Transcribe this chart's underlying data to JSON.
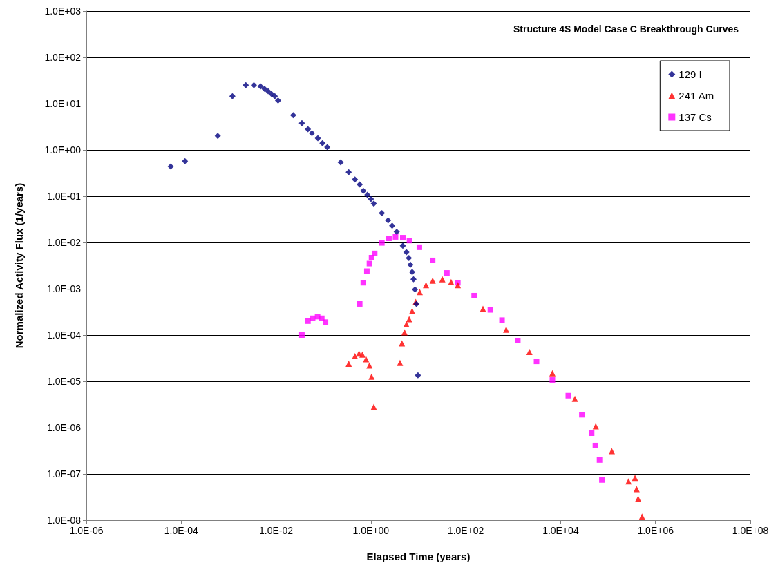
{
  "chart_data": {
    "type": "scatter",
    "title": "Structure 4S Model Case C Breakthrough Curves",
    "xlabel": "Elapsed Time (years)",
    "ylabel": "Normalized Activity Flux (1/years)",
    "log": "xy",
    "grid": "y",
    "legend": "top right",
    "xlim": [
      1e-06,
      100000000.0
    ],
    "ylim": [
      1e-08,
      1000.0
    ],
    "xticks": [
      {
        "value": 1e-06,
        "label": "1.0E-06"
      },
      {
        "value": 0.0001,
        "label": "1.0E-04"
      },
      {
        "value": 0.01,
        "label": "1.0E-02"
      },
      {
        "value": 1,
        "label": "1.0E+00"
      },
      {
        "value": 100.0,
        "label": "1.0E+02"
      },
      {
        "value": 10000.0,
        "label": "1.0E+04"
      },
      {
        "value": 1000000.0,
        "label": "1.0E+06"
      },
      {
        "value": 100000000.0,
        "label": "1.0E+08"
      }
    ],
    "yticks": [
      {
        "value": 1e-08,
        "label": "1.0E-08"
      },
      {
        "value": 1e-07,
        "label": "1.0E-07"
      },
      {
        "value": 1e-06,
        "label": "1.0E-06"
      },
      {
        "value": 1e-05,
        "label": "1.0E-05"
      },
      {
        "value": 0.0001,
        "label": "1.0E-04"
      },
      {
        "value": 0.001,
        "label": "1.0E-03"
      },
      {
        "value": 0.01,
        "label": "1.0E-02"
      },
      {
        "value": 0.1,
        "label": "1.0E-01"
      },
      {
        "value": 1,
        "label": "1.0E+00"
      },
      {
        "value": 10,
        "label": "1.0E+01"
      },
      {
        "value": 100,
        "label": "1.0E+02"
      },
      {
        "value": 1000,
        "label": "1.0E+03"
      }
    ],
    "series": [
      {
        "name": "129 I",
        "color": "#000080",
        "marker": "diamond",
        "x": [
          6e-05,
          0.00012,
          0.00059,
          0.0012,
          0.0023,
          0.0034,
          0.0047,
          0.0057,
          0.0068,
          0.008,
          0.0094,
          0.011,
          0.023,
          0.035,
          0.047,
          0.057,
          0.076,
          0.095,
          0.12,
          0.23,
          0.34,
          0.46,
          0.58,
          0.69,
          0.84,
          1.0,
          1.15,
          1.7,
          2.3,
          2.8,
          3.5,
          4.7,
          5.6,
          6.3,
          6.8,
          7.4,
          7.9,
          8.5,
          9.1,
          9.8
        ],
        "values": [
          0.44,
          0.57,
          2.0,
          14.5,
          25,
          25,
          23.6,
          21,
          18.6,
          16.2,
          14.5,
          11.7,
          5.6,
          3.8,
          2.8,
          2.3,
          1.8,
          1.4,
          1.15,
          0.54,
          0.33,
          0.23,
          0.18,
          0.13,
          0.107,
          0.087,
          0.069,
          0.043,
          0.03,
          0.023,
          0.017,
          0.0085,
          0.0062,
          0.0046,
          0.0033,
          0.0023,
          0.0016,
          0.00097,
          0.00047,
          1.35e-05
        ]
      },
      {
        "name": "241 Am",
        "color": "#ff0000",
        "marker": "triangle",
        "x": [
          0.34,
          0.46,
          0.56,
          0.66,
          0.79,
          0.93,
          1.03,
          1.15,
          4.1,
          4.5,
          5.1,
          5.6,
          6.4,
          7.4,
          8.8,
          10.7,
          14.5,
          20,
          32,
          49,
          68,
          230,
          710,
          2200,
          6700,
          20000.0,
          55000.0,
          120000.0,
          270000.0,
          370000.0,
          400000.0,
          430000.0,
          520000.0
        ],
        "values": [
          2.4e-05,
          3.5e-05,
          4e-05,
          3.8e-05,
          3e-05,
          2.2e-05,
          1.26e-05,
          2.8e-06,
          2.5e-05,
          6.6e-05,
          0.000115,
          0.00017,
          0.00022,
          0.00033,
          0.00052,
          0.00085,
          0.0012,
          0.0015,
          0.0016,
          0.0014,
          0.0012,
          0.00037,
          0.00013,
          4.3e-05,
          1.5e-05,
          4.2e-06,
          1.07e-06,
          3.1e-07,
          6.9e-08,
          8.2e-08,
          4.7e-08,
          2.9e-08,
          1.2e-08
        ]
      },
      {
        "name": "137 Cs",
        "color": "#ff00ff",
        "marker": "square",
        "x": [
          0.035,
          0.047,
          0.059,
          0.075,
          0.092,
          0.11,
          0.58,
          0.69,
          0.82,
          0.93,
          1.03,
          1.2,
          1.7,
          2.4,
          3.3,
          4.7,
          6.5,
          10.5,
          20,
          40,
          68,
          150,
          330,
          580,
          1250,
          3100,
          6700,
          14500.0,
          28000.0,
          45000.0,
          54000.0,
          66000.0,
          74000.0
        ],
        "values": [
          0.0001,
          0.0002,
          0.00023,
          0.00025,
          0.00023,
          0.00019,
          0.00047,
          0.00135,
          0.0024,
          0.0035,
          0.0047,
          0.0058,
          0.0098,
          0.0123,
          0.0132,
          0.0127,
          0.011,
          0.0079,
          0.0041,
          0.0022,
          0.00135,
          0.00071,
          0.00035,
          0.00021,
          7.6e-05,
          2.7e-05,
          1.07e-05,
          4.9e-06,
          1.9e-06,
          7.6e-07,
          4.1e-07,
          2e-07,
          7.4e-08
        ]
      }
    ]
  }
}
